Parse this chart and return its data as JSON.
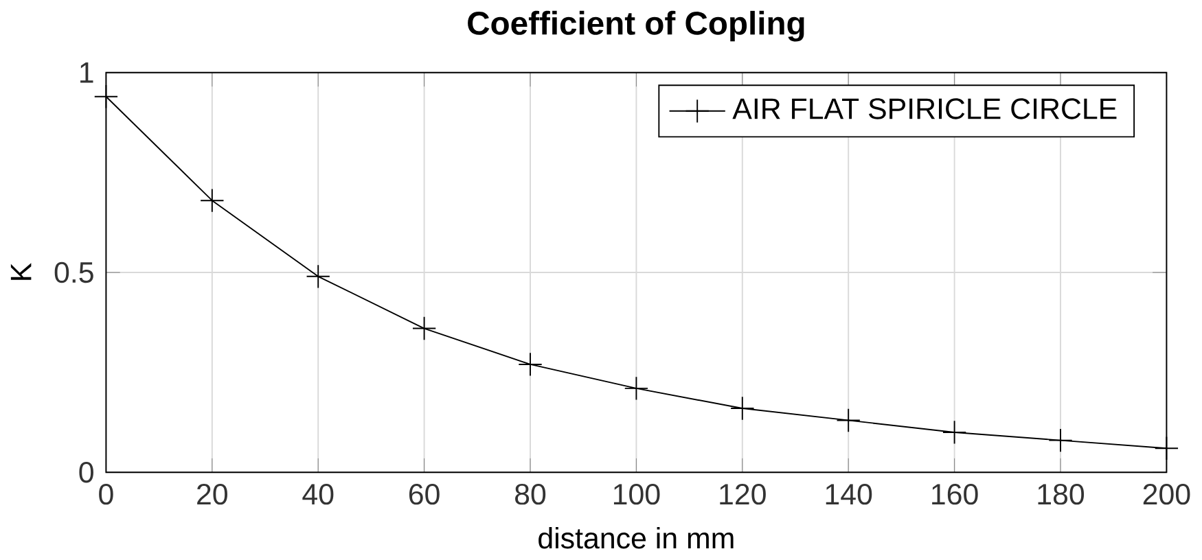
{
  "chart_data": {
    "type": "line",
    "title": "Coefficient of Copling",
    "xlabel": "distance in mm",
    "ylabel": "K",
    "x": [
      0,
      20,
      40,
      60,
      80,
      100,
      120,
      140,
      160,
      180,
      200
    ],
    "series": [
      {
        "name": "AIR FLAT SPIRICLE CIRCLE",
        "color": "#000000",
        "values": [
          0.94,
          0.68,
          0.49,
          0.36,
          0.27,
          0.21,
          0.16,
          0.13,
          0.1,
          0.08,
          0.06
        ]
      }
    ],
    "xlim": [
      0,
      200
    ],
    "xticks": [
      0,
      20,
      40,
      60,
      80,
      100,
      120,
      140,
      160,
      180,
      200
    ],
    "ylim": [
      0,
      1
    ],
    "yticks": [
      0,
      0.5,
      1
    ],
    "grid": true,
    "legend": "top right",
    "marker": "cross",
    "line_style": "solid"
  }
}
